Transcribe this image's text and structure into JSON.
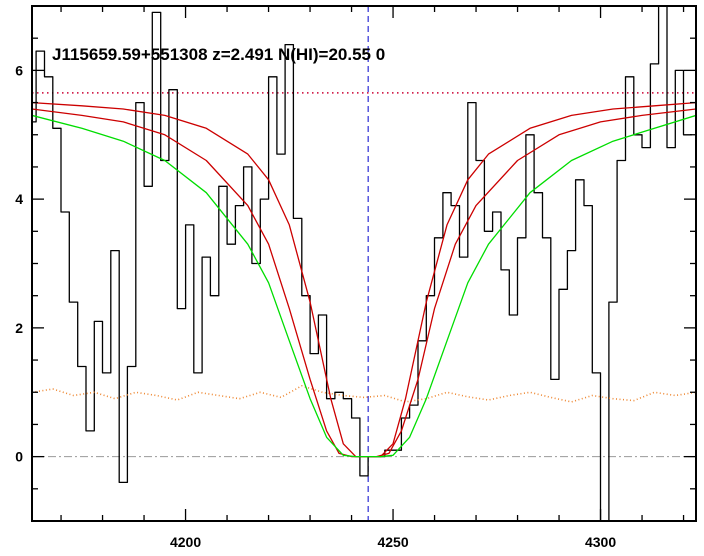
{
  "chart_data": {
    "type": "line",
    "title": "J115659.59+551308 z=2.491 N(HI)=20.55 0",
    "xlabel": "",
    "ylabel": "",
    "xlim": [
      4163,
      4323
    ],
    "ylim": [
      -1,
      7
    ],
    "xticks": [
      4200,
      4250,
      4300
    ],
    "yticks": [
      0,
      2,
      4,
      6
    ],
    "grid": false,
    "colors": {
      "flux": "#000000",
      "model": "#00dd00",
      "model_bounds": "#cc0000",
      "continuum": "#cc0033",
      "error": "#ee8833",
      "zero_line": "#999999",
      "line_center": "#0000cc"
    },
    "line_center_x": 4244,
    "continuum_level": 5.65,
    "zero_level": 0,
    "series": [
      {
        "style": "step",
        "x": [
          4163,
          4165,
          4167,
          4169,
          4171,
          4173,
          4175,
          4177,
          4179,
          4181,
          4183,
          4185,
          4187,
          4189,
          4191,
          4193,
          4195,
          4197,
          4199,
          4201,
          4203,
          4205,
          4207,
          4209,
          4211,
          4213,
          4215,
          4217,
          4219,
          4221,
          4223,
          4225,
          4227,
          4229,
          4231,
          4233,
          4235,
          4237,
          4239,
          4241,
          4243,
          4245,
          4247,
          4249,
          4251,
          4253,
          4255,
          4257,
          4259,
          4261,
          4263,
          4265,
          4267,
          4269,
          4271,
          4273,
          4275,
          4277,
          4279,
          4281,
          4283,
          4285,
          4287,
          4289,
          4291,
          4293,
          4295,
          4297,
          4299,
          4301,
          4303,
          4305,
          4307,
          4309,
          4311,
          4313,
          4315,
          4317,
          4319,
          4321
        ],
        "values": [
          5.2,
          6.3,
          5.9,
          5.1,
          3.8,
          2.4,
          1.4,
          0.4,
          2.1,
          1.3,
          3.2,
          -0.4,
          1.4,
          5.5,
          4.2,
          6.9,
          4.6,
          5.7,
          2.3,
          3.6,
          1.3,
          3.1,
          2.5,
          4.2,
          3.3,
          3.9,
          4.5,
          3.0,
          4.0,
          5.9,
          4.7,
          6.4,
          3.7,
          2.5,
          1.6,
          2.2,
          0.9,
          1.0,
          0.9,
          0.6,
          -0.3,
          0.0,
          0.0,
          0.1,
          0.1,
          0.6,
          0.8,
          1.8,
          2.5,
          3.4,
          4.1,
          3.9,
          3.1,
          5.5,
          4.6,
          3.5,
          3.8,
          2.9,
          2.2,
          3.4,
          5.0,
          4.1,
          3.4,
          1.2,
          2.6,
          3.2,
          4.3,
          3.9,
          1.3,
          -1.0,
          2.4,
          4.6,
          5.9,
          5.0,
          4.8,
          6.1,
          7.0,
          4.8,
          6.0,
          5.0
        ]
      },
      {
        "style": "dotted",
        "x": [
          4163,
          4168,
          4173,
          4178,
          4183,
          4188,
          4193,
          4198,
          4203,
          4208,
          4213,
          4218,
          4223,
          4228,
          4233,
          4238,
          4243,
          4248,
          4253,
          4258,
          4263,
          4268,
          4273,
          4278,
          4283,
          4288,
          4293,
          4298,
          4303,
          4308,
          4313,
          4318,
          4323
        ],
        "values": [
          1.0,
          1.05,
          0.95,
          1.0,
          0.9,
          1.0,
          0.95,
          0.88,
          1.0,
          0.95,
          0.9,
          1.0,
          0.92,
          1.1,
          1.0,
          0.95,
          0.92,
          0.95,
          0.85,
          0.9,
          1.0,
          0.93,
          0.88,
          0.95,
          1.0,
          0.92,
          0.85,
          0.95,
          0.9,
          0.87,
          1.0,
          0.95,
          1.0
        ]
      },
      {
        "style": "line",
        "x": [
          4163,
          4175,
          4185,
          4195,
          4205,
          4215,
          4220,
          4225,
          4230,
          4234,
          4237,
          4240,
          4243,
          4246,
          4249,
          4252,
          4256,
          4260,
          4265,
          4270,
          4280,
          4290,
          4300,
          4310,
          4323
        ],
        "values": [
          5.4,
          5.3,
          5.2,
          5.0,
          4.6,
          3.9,
          3.3,
          2.3,
          1.2,
          0.4,
          0.05,
          0.0,
          0.0,
          0.0,
          0.05,
          0.4,
          1.2,
          2.3,
          3.3,
          3.9,
          4.6,
          5.0,
          5.2,
          5.3,
          5.4
        ]
      },
      {
        "style": "line",
        "x": [
          4163,
          4175,
          4185,
          4195,
          4205,
          4215,
          4220,
          4225,
          4230,
          4235,
          4238,
          4241,
          4244,
          4247,
          4250,
          4253,
          4258,
          4263,
          4268,
          4273,
          4283,
          4293,
          4303,
          4313,
          4323
        ],
        "values": [
          5.5,
          5.45,
          5.4,
          5.3,
          5.1,
          4.7,
          4.3,
          3.6,
          2.4,
          0.9,
          0.2,
          0.0,
          0.0,
          0.0,
          0.2,
          0.9,
          2.4,
          3.6,
          4.3,
          4.7,
          5.1,
          5.3,
          5.4,
          5.45,
          5.5
        ]
      },
      {
        "style": "line",
        "x": [
          4163,
          4175,
          4185,
          4195,
          4205,
          4215,
          4220,
          4225,
          4230,
          4234,
          4238,
          4241,
          4244,
          4247,
          4250,
          4254,
          4258,
          4263,
          4268,
          4273,
          4283,
          4293,
          4303,
          4313,
          4323
        ],
        "values": [
          5.3,
          5.1,
          4.9,
          4.6,
          4.1,
          3.3,
          2.7,
          1.8,
          0.9,
          0.3,
          0.02,
          0.0,
          0.0,
          0.0,
          0.02,
          0.3,
          0.9,
          1.8,
          2.7,
          3.3,
          4.1,
          4.6,
          4.9,
          5.1,
          5.3
        ]
      }
    ]
  }
}
